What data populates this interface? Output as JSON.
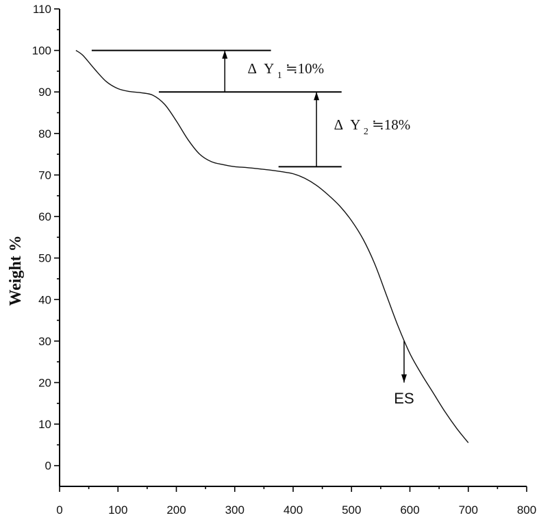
{
  "chart_data": {
    "type": "line",
    "title": "",
    "xlabel": "",
    "ylabel": "Weight %",
    "xlim": [
      0,
      800
    ],
    "ylim": [
      -5,
      110
    ],
    "xticks": [
      0,
      100,
      200,
      300,
      400,
      500,
      600,
      700,
      800
    ],
    "yticks": [
      0,
      10,
      20,
      30,
      40,
      50,
      60,
      70,
      80,
      90,
      100,
      110
    ],
    "grid": false,
    "legend": "none",
    "series": [
      {
        "x": [
          28,
          40,
          60,
          80,
          100,
          120,
          140,
          160,
          180,
          200,
          220,
          240,
          260,
          280,
          300,
          320,
          340,
          360,
          380,
          400,
          420,
          440,
          460,
          480,
          500,
          520,
          540,
          560,
          580,
          600,
          620,
          640,
          660,
          680,
          700
        ],
        "y": [
          100,
          98.8,
          95.5,
          92.5,
          90.8,
          90.1,
          89.8,
          89.2,
          87.0,
          83.0,
          78.5,
          75.0,
          73.2,
          72.5,
          72.0,
          71.8,
          71.5,
          71.2,
          70.8,
          70.3,
          69.2,
          67.5,
          65.2,
          62.5,
          59.0,
          54.5,
          48.5,
          41.0,
          33.5,
          27.0,
          22.0,
          17.5,
          13.0,
          9.0,
          5.5
        ]
      }
    ],
    "annotations": {
      "ref_lines": [
        {
          "y": 100,
          "x_from": 55,
          "x_to": 362
        },
        {
          "y": 90,
          "x_from": 170,
          "x_to": 483
        },
        {
          "y": 72,
          "x_from": 375,
          "x_to": 483
        }
      ],
      "arrows": [
        {
          "x": 283,
          "y_from": 90,
          "y_to": 100
        },
        {
          "x": 440,
          "y_from": 72,
          "y_to": 90
        },
        {
          "x": 590,
          "y_from": 30,
          "y_to": 20
        }
      ],
      "delta_y1_symbol": "Δ",
      "delta_y1_var": "Y",
      "delta_y1_sub": "1",
      "delta_y1_value": "≒10%",
      "delta_y2_symbol": "Δ",
      "delta_y2_var": "Y",
      "delta_y2_sub": "2",
      "delta_y2_value": "≒18%",
      "es_label": "ES"
    }
  }
}
